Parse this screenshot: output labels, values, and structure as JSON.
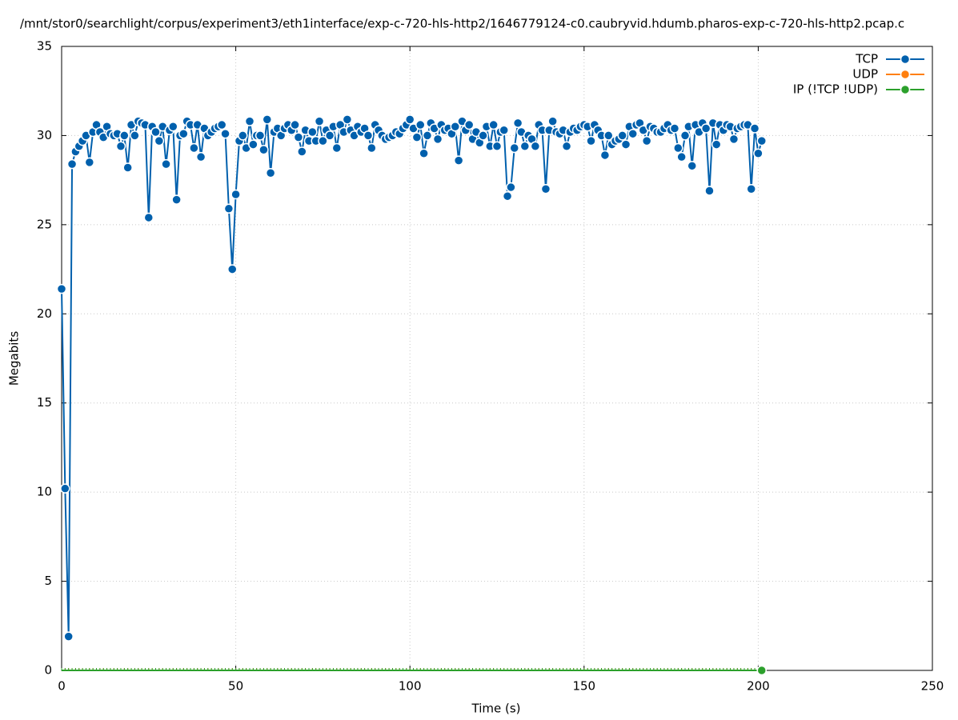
{
  "chart_data": {
    "type": "line",
    "title": "/mnt/stor0/searchlight/corpus/experiment3/eth1interface/exp-c-720-hls-http2/1646779124-c0.caubryvid.hdumb.pharos-exp-c-720-hls-http2.pcap.c",
    "x_label": "Time (s)",
    "y_label": "Megabits",
    "xlim": [
      0,
      250
    ],
    "xticks": [
      0,
      50,
      100,
      150,
      200,
      250
    ],
    "ylim": [
      0,
      35
    ],
    "yticks": [
      0,
      5,
      10,
      15,
      20,
      25,
      30,
      35
    ],
    "grid": true,
    "legend": "top-right",
    "x": [
      0,
      1,
      2,
      3,
      4,
      5,
      6,
      7,
      8,
      9,
      10,
      11,
      12,
      13,
      14,
      15,
      16,
      17,
      18,
      19,
      20,
      21,
      22,
      23,
      24,
      25,
      26,
      27,
      28,
      29,
      30,
      31,
      32,
      33,
      34,
      35,
      36,
      37,
      38,
      39,
      40,
      41,
      42,
      43,
      44,
      45,
      46,
      47,
      48,
      49,
      50,
      51,
      52,
      53,
      54,
      55,
      56,
      57,
      58,
      59,
      60,
      61,
      62,
      63,
      64,
      65,
      66,
      67,
      68,
      69,
      70,
      71,
      72,
      73,
      74,
      75,
      76,
      77,
      78,
      79,
      80,
      81,
      82,
      83,
      84,
      85,
      86,
      87,
      88,
      89,
      90,
      91,
      92,
      93,
      94,
      95,
      96,
      97,
      98,
      99,
      100,
      101,
      102,
      103,
      104,
      105,
      106,
      107,
      108,
      109,
      110,
      111,
      112,
      113,
      114,
      115,
      116,
      117,
      118,
      119,
      120,
      121,
      122,
      123,
      124,
      125,
      126,
      127,
      128,
      129,
      130,
      131,
      132,
      133,
      134,
      135,
      136,
      137,
      138,
      139,
      140,
      141,
      142,
      143,
      144,
      145,
      146,
      147,
      148,
      149,
      150,
      151,
      152,
      153,
      154,
      155,
      156,
      157,
      158,
      159,
      160,
      161,
      162,
      163,
      164,
      165,
      166,
      167,
      168,
      169,
      170,
      171,
      172,
      173,
      174,
      175,
      176,
      177,
      178,
      179,
      180,
      181,
      182,
      183,
      184,
      185,
      186,
      187,
      188,
      189,
      190,
      191,
      192,
      193,
      194,
      195,
      196,
      197,
      198,
      199,
      200,
      201
    ],
    "series": [
      {
        "name": "TCP",
        "color": "#0060ad",
        "values": [
          21.4,
          10.2,
          1.9,
          28.4,
          29.1,
          29.4,
          29.7,
          30.0,
          28.5,
          30.2,
          30.6,
          30.2,
          29.9,
          30.5,
          30.1,
          30.0,
          30.1,
          29.4,
          30.0,
          28.2,
          30.6,
          30.0,
          30.8,
          30.7,
          30.6,
          25.4,
          30.5,
          30.2,
          29.7,
          30.5,
          28.4,
          30.3,
          30.5,
          26.4,
          30.0,
          30.1,
          30.8,
          30.6,
          29.3,
          30.6,
          28.8,
          30.4,
          30.0,
          30.2,
          30.4,
          30.5,
          30.6,
          30.1,
          25.9,
          22.5,
          26.7,
          29.7,
          30.0,
          29.3,
          30.8,
          29.5,
          30.0,
          30.0,
          29.2,
          30.9,
          27.9,
          30.2,
          30.4,
          30.0,
          30.4,
          30.6,
          30.3,
          30.6,
          29.9,
          29.1,
          30.3,
          29.7,
          30.2,
          29.7,
          30.8,
          29.7,
          30.3,
          30.0,
          30.5,
          29.3,
          30.6,
          30.2,
          30.9,
          30.3,
          30.0,
          30.5,
          30.2,
          30.4,
          30.0,
          29.3,
          30.6,
          30.3,
          30.0,
          29.8,
          29.9,
          30.0,
          30.2,
          30.1,
          30.4,
          30.6,
          30.9,
          30.4,
          29.9,
          30.6,
          29.0,
          30.0,
          30.7,
          30.4,
          29.8,
          30.6,
          30.3,
          30.4,
          30.1,
          30.5,
          28.6,
          30.8,
          30.3,
          30.6,
          29.8,
          30.2,
          29.6,
          30.0,
          30.5,
          29.4,
          30.6,
          29.4,
          30.2,
          30.3,
          26.6,
          27.1,
          29.3,
          30.7,
          30.2,
          29.4,
          30.0,
          29.8,
          29.4,
          30.6,
          30.3,
          27.0,
          30.3,
          30.8,
          30.2,
          30.1,
          30.3,
          29.4,
          30.2,
          30.4,
          30.3,
          30.5,
          30.6,
          30.5,
          29.7,
          30.6,
          30.3,
          30.0,
          28.9,
          30.0,
          29.5,
          29.7,
          29.8,
          30.0,
          29.5,
          30.5,
          30.1,
          30.6,
          30.7,
          30.3,
          29.7,
          30.5,
          30.4,
          30.2,
          30.2,
          30.4,
          30.6,
          30.3,
          30.4,
          29.3,
          28.8,
          30.0,
          30.5,
          28.3,
          30.6,
          30.2,
          30.7,
          30.4,
          26.9,
          30.7,
          29.5,
          30.6,
          30.3,
          30.6,
          30.5,
          29.8,
          30.4,
          30.5,
          30.6,
          30.6,
          27.0,
          30.4,
          29.0,
          29.7
        ]
      },
      {
        "name": "UDP",
        "color": "#ff7f0e",
        "values": [
          0,
          0,
          0,
          0,
          0,
          0,
          0,
          0,
          0,
          0,
          0,
          0,
          0,
          0,
          0,
          0,
          0,
          0,
          0,
          0,
          0,
          0,
          0,
          0,
          0,
          0,
          0,
          0,
          0,
          0,
          0,
          0,
          0,
          0,
          0,
          0,
          0,
          0,
          0,
          0,
          0,
          0,
          0,
          0,
          0,
          0,
          0,
          0,
          0,
          0,
          0,
          0,
          0,
          0,
          0,
          0,
          0,
          0,
          0,
          0,
          0,
          0,
          0,
          0,
          0,
          0,
          0,
          0,
          0,
          0,
          0,
          0,
          0,
          0,
          0,
          0,
          0,
          0,
          0,
          0,
          0,
          0,
          0,
          0,
          0,
          0,
          0,
          0,
          0,
          0,
          0,
          0,
          0,
          0,
          0,
          0,
          0,
          0,
          0,
          0,
          0,
          0,
          0,
          0,
          0,
          0,
          0,
          0,
          0,
          0,
          0,
          0,
          0,
          0,
          0,
          0,
          0,
          0,
          0,
          0,
          0,
          0,
          0,
          0,
          0,
          0,
          0,
          0,
          0,
          0,
          0,
          0,
          0,
          0,
          0,
          0,
          0,
          0,
          0,
          0,
          0,
          0,
          0,
          0,
          0,
          0,
          0,
          0,
          0,
          0,
          0,
          0,
          0,
          0,
          0,
          0,
          0,
          0,
          0,
          0,
          0,
          0,
          0,
          0,
          0,
          0,
          0,
          0,
          0,
          0,
          0,
          0,
          0,
          0,
          0,
          0,
          0,
          0,
          0,
          0,
          0,
          0,
          0,
          0,
          0,
          0,
          0,
          0,
          0,
          0,
          0,
          0,
          0,
          0,
          0,
          0,
          0,
          0,
          0,
          0,
          0,
          0
        ]
      },
      {
        "name": "IP (!TCP  !UDP)",
        "color": "#2ca02c",
        "values": [
          0,
          0,
          0,
          0,
          0,
          0,
          0,
          0,
          0,
          0,
          0,
          0,
          0,
          0,
          0,
          0,
          0,
          0,
          0,
          0,
          0,
          0,
          0,
          0,
          0,
          0,
          0,
          0,
          0,
          0,
          0,
          0,
          0,
          0,
          0,
          0,
          0,
          0,
          0,
          0,
          0,
          0,
          0,
          0,
          0,
          0,
          0,
          0,
          0,
          0,
          0,
          0,
          0,
          0,
          0,
          0,
          0,
          0,
          0,
          0,
          0,
          0,
          0,
          0,
          0,
          0,
          0,
          0,
          0,
          0,
          0,
          0,
          0,
          0,
          0,
          0,
          0,
          0,
          0,
          0,
          0,
          0,
          0,
          0,
          0,
          0,
          0,
          0,
          0,
          0,
          0,
          0,
          0,
          0,
          0,
          0,
          0,
          0,
          0,
          0,
          0,
          0,
          0,
          0,
          0,
          0,
          0,
          0,
          0,
          0,
          0,
          0,
          0,
          0,
          0,
          0,
          0,
          0,
          0,
          0,
          0,
          0,
          0,
          0,
          0,
          0,
          0,
          0,
          0,
          0,
          0,
          0,
          0,
          0,
          0,
          0,
          0,
          0,
          0,
          0,
          0,
          0,
          0,
          0,
          0,
          0,
          0,
          0,
          0,
          0,
          0,
          0,
          0,
          0,
          0,
          0,
          0,
          0,
          0,
          0,
          0,
          0,
          0,
          0,
          0,
          0,
          0,
          0,
          0,
          0,
          0,
          0,
          0,
          0,
          0,
          0,
          0,
          0,
          0,
          0,
          0,
          0,
          0,
          0,
          0,
          0,
          0,
          0,
          0,
          0,
          0,
          0,
          0,
          0,
          0,
          0,
          0,
          0,
          0,
          0,
          0,
          0
        ]
      }
    ]
  }
}
